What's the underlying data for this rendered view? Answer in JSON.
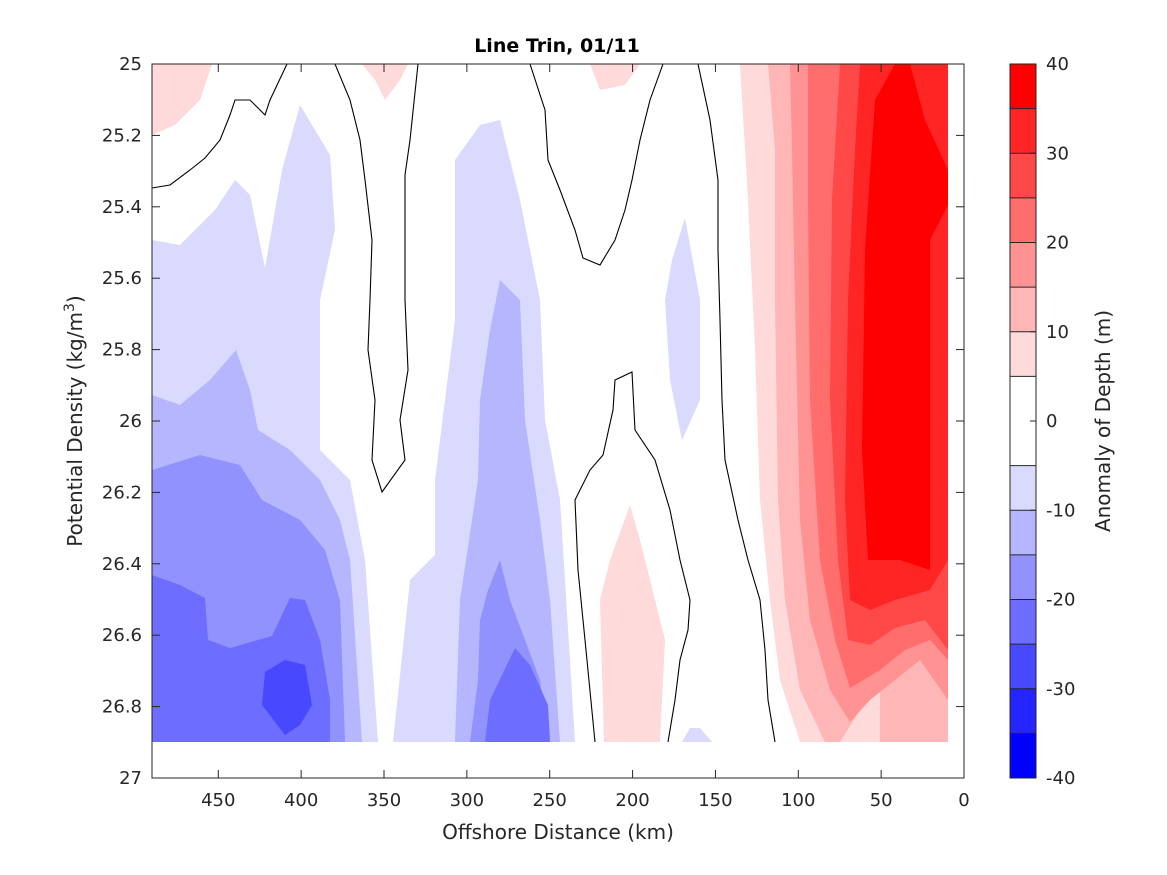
{
  "chart_data": {
    "type": "heatmap",
    "title": "Line Trin, 01/11",
    "xlabel": "Offshore Distance (km)",
    "ylabel": "Potential Density (kg/m³)",
    "ylabel_parts": {
      "before": "Potential Density (kg/m",
      "sup": "3",
      "after": ")"
    },
    "colorbar_label": "Anomaly of Depth (m)",
    "xlim": [
      490,
      0
    ],
    "x_reversed": true,
    "ylim": [
      27,
      25
    ],
    "y_reversed": true,
    "xticks": [
      450,
      400,
      350,
      300,
      250,
      200,
      150,
      100,
      50,
      0
    ],
    "yticks": [
      25,
      25.2,
      25.4,
      25.6,
      25.8,
      26,
      26.2,
      26.4,
      26.6,
      26.8,
      27
    ],
    "yticklabels": [
      "25",
      "25.2",
      "25.4",
      "25.6",
      "25.8",
      "26",
      "26.2",
      "26.4",
      "26.6",
      "26.8",
      "27"
    ],
    "colorbar": {
      "range": [
        -40,
        40
      ],
      "ticks": [
        40,
        30,
        20,
        10,
        0,
        -10,
        -20,
        -30,
        -40
      ],
      "levels": [
        -40,
        -35,
        -30,
        -25,
        -20,
        -15,
        -10,
        -5,
        5,
        10,
        15,
        20,
        25,
        30,
        35,
        40
      ],
      "colors": [
        "#0000ff",
        "#2525ff",
        "#4848ff",
        "#6d6dff",
        "#9292ff",
        "#b6b6ff",
        "#dadaff",
        "#ffffff",
        "#ffdada",
        "#ffb6b6",
        "#ff9292",
        "#ff6d6d",
        "#ff4848",
        "#ff2525",
        "#ff0000"
      ]
    },
    "grid": false,
    "data_extent": {
      "x": [
        490,
        0
      ],
      "density": [
        25,
        26.9
      ]
    },
    "regions": [
      {
        "level": -10,
        "color": "#dadaff",
        "x": [
          490,
          320
        ],
        "density": [
          25.1,
          26.9
        ]
      },
      {
        "level": -10,
        "color": "#dadaff",
        "x": [
          300,
          230
        ],
        "density": [
          25.15,
          26.9
        ]
      },
      {
        "level": -10,
        "color": "#dadaff",
        "x": [
          180,
          160
        ],
        "density": [
          25.55,
          26.05
        ]
      },
      {
        "level": -15,
        "color": "#b6b6ff",
        "x": [
          490,
          340
        ],
        "density": [
          25.85,
          26.9
        ]
      },
      {
        "level": -15,
        "color": "#b6b6ff",
        "x": [
          290,
          250
        ],
        "density": [
          25.6,
          26.9
        ]
      },
      {
        "level": -20,
        "color": "#9292ff",
        "x": [
          490,
          350
        ],
        "density": [
          26.1,
          26.9
        ]
      },
      {
        "level": -25,
        "color": "#6d6dff",
        "x": [
          490,
          320
        ],
        "density": [
          26.45,
          26.9
        ]
      },
      {
        "level": -30,
        "color": "#4848ff",
        "x": [
          420,
          390
        ],
        "density": [
          26.65,
          26.9
        ]
      },
      {
        "level": 10,
        "color": "#ffdada",
        "x": [
          490,
          450
        ],
        "density": [
          25,
          25.2
        ]
      },
      {
        "level": 10,
        "color": "#ffdada",
        "x": [
          340,
          330
        ],
        "density": [
          25,
          25.1
        ]
      },
      {
        "level": 10,
        "color": "#ffdada",
        "x": [
          210,
          180
        ],
        "density": [
          26.25,
          26.9
        ]
      },
      {
        "level": 10,
        "color": "#ffdada",
        "x": [
          130,
          30
        ],
        "density": [
          25,
          26.9
        ]
      },
      {
        "level": 20,
        "color": "#ff9292",
        "x": [
          110,
          20
        ],
        "density": [
          25,
          26.8
        ]
      },
      {
        "level": 30,
        "color": "#ff4848",
        "x": [
          80,
          20
        ],
        "density": [
          25,
          26.75
        ]
      },
      {
        "level": 40,
        "color": "#ff0000",
        "x": [
          60,
          20
        ],
        "density": [
          25,
          26.55
        ]
      }
    ]
  }
}
